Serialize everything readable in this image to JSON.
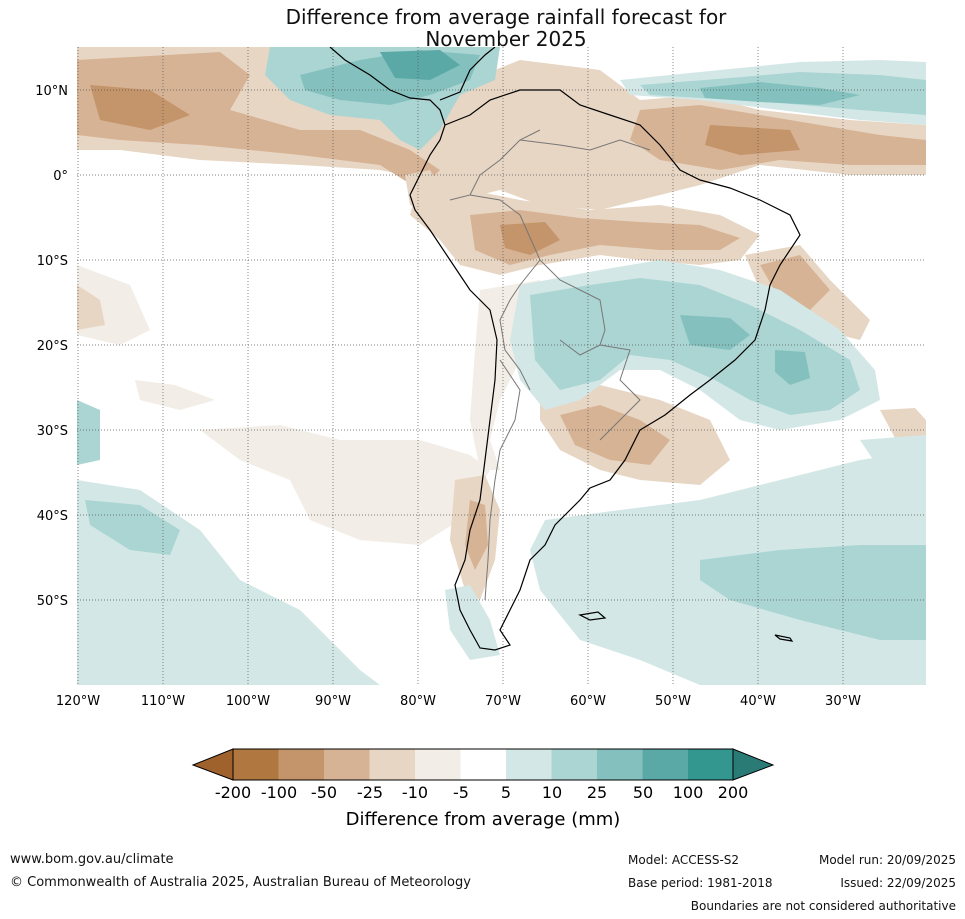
{
  "title": {
    "line1": "Difference from average rainfall forecast for",
    "line2": "November 2025"
  },
  "map": {
    "lat_labels": [
      "10°N",
      "0°",
      "10°S",
      "20°S",
      "30°S",
      "40°S",
      "50°S"
    ],
    "lon_labels": [
      "120°W",
      "110°W",
      "100°W",
      "90°W",
      "80°W",
      "70°W",
      "60°W",
      "50°W",
      "40°W",
      "30°W"
    ]
  },
  "colorbar": {
    "ticks": [
      "-200",
      "-100",
      "-50",
      "-25",
      "-10",
      "-5",
      "5",
      "10",
      "25",
      "50",
      "100",
      "200"
    ],
    "colors": [
      "#a0622d",
      "#b07840",
      "#c4946a",
      "#d6b394",
      "#e8d6c4",
      "#f2ede6",
      "#ffffff",
      "#d3e8e6",
      "#abd5d3",
      "#84c1be",
      "#5aa9a6",
      "#33968f",
      "#2a7a76"
    ],
    "label": "Difference from average (mm)"
  },
  "footer": {
    "website": "www.bom.gov.au/climate",
    "copyright": "© Commonwealth of Australia 2025, Australian Bureau of Meteorology",
    "model": "Model: ACCESS-S2",
    "base_period": "Base period: 1981-2018",
    "model_run": "Model run: 20/09/2025",
    "issued": "Issued: 22/09/2025",
    "disclaimer": "Boundaries are not considered authoritative"
  }
}
